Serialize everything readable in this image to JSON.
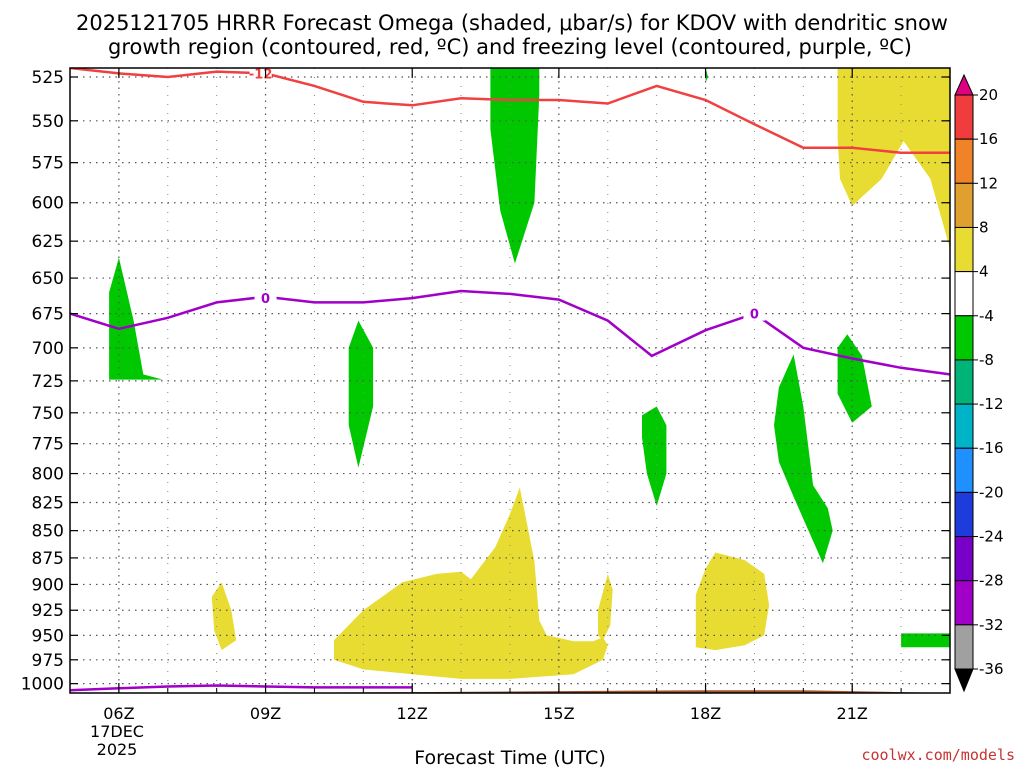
{
  "title_line1": "2025121705 HRRR Forecast Omega (shaded, μbar/s) for KDOV with dendritic snow",
  "title_line2": "growth region (contoured, red, ºC) and freezing level (contoured, purple, ºC)",
  "credit": "coolwx.com/models",
  "chart_data": {
    "type": "heatmap",
    "xlabel": "Forecast Time (UTC)",
    "ylabel": "",
    "x_range_hours": [
      5,
      23
    ],
    "y_range_hPa": [
      520,
      1010
    ],
    "x_ticks": [
      {
        "hour": 6,
        "label": "06Z"
      },
      {
        "hour": 9,
        "label": "09Z"
      },
      {
        "hour": 12,
        "label": "12Z"
      },
      {
        "hour": 15,
        "label": "15Z"
      },
      {
        "hour": 18,
        "label": "18Z"
      },
      {
        "hour": 21,
        "label": "21Z"
      }
    ],
    "date_label_line1": "17DEC",
    "date_label_line2": "2025",
    "y_ticks": [
      525,
      550,
      575,
      600,
      625,
      650,
      675,
      700,
      725,
      750,
      775,
      800,
      825,
      850,
      875,
      900,
      925,
      950,
      975,
      1000
    ],
    "grid": true,
    "colorbar": {
      "levels": [
        "20",
        "16",
        "12",
        "8",
        "4",
        "-4",
        "-8",
        "-12",
        "-16",
        "-20",
        "-24",
        "-28",
        "-32",
        "-36"
      ],
      "colors": [
        "#e00080",
        "#f03c3c",
        "#f08228",
        "#e0a030",
        "#e8dc32",
        "#ffffff",
        "#00c800",
        "#00b478",
        "#00b4c8",
        "#1e90ff",
        "#1e3cdc",
        "#7800c8",
        "#a000c8",
        "#a0a0a0",
        "#000000"
      ]
    },
    "shaded_regions": [
      {
        "value": "4 to 8",
        "color": "#e8dc32",
        "points": [
          [
            21.0,
            520
          ],
          [
            22.5,
            520
          ],
          [
            22.5,
            520
          ],
          [
            23.0,
            520
          ],
          [
            23.0,
            630
          ],
          [
            22.6,
            585
          ],
          [
            22.05,
            562
          ],
          [
            21.6,
            585
          ],
          [
            21.0,
            602
          ],
          [
            20.75,
            585
          ],
          [
            20.7,
            560
          ],
          [
            20.7,
            520
          ]
        ]
      },
      {
        "value": "4 to 8",
        "color": "#e8dc32",
        "points": [
          [
            10.4,
            955
          ],
          [
            11.0,
            925
          ],
          [
            11.8,
            898
          ],
          [
            12.5,
            890
          ],
          [
            13.0,
            888
          ],
          [
            13.2,
            895
          ],
          [
            13.7,
            865
          ],
          [
            14.0,
            835
          ],
          [
            14.2,
            812
          ],
          [
            14.5,
            878
          ],
          [
            14.6,
            935
          ],
          [
            14.75,
            950
          ],
          [
            15.3,
            956
          ],
          [
            15.7,
            956
          ],
          [
            15.9,
            952
          ],
          [
            16.0,
            960
          ],
          [
            15.9,
            975
          ],
          [
            15.3,
            990
          ],
          [
            14.0,
            995
          ],
          [
            13.0,
            995
          ],
          [
            12.0,
            990
          ],
          [
            11.0,
            985
          ],
          [
            10.4,
            975
          ]
        ]
      },
      {
        "value": "4 to 8",
        "color": "#e8dc32",
        "points": [
          [
            8.1,
            898
          ],
          [
            8.3,
            925
          ],
          [
            8.4,
            955
          ],
          [
            8.1,
            965
          ],
          [
            7.95,
            945
          ],
          [
            7.9,
            912
          ]
        ]
      },
      {
        "value": "4 to 8",
        "color": "#e8dc32",
        "points": [
          [
            17.8,
            962
          ],
          [
            17.8,
            910
          ],
          [
            18.0,
            885
          ],
          [
            18.2,
            870
          ],
          [
            18.8,
            877
          ],
          [
            19.2,
            890
          ],
          [
            19.3,
            920
          ],
          [
            19.2,
            950
          ],
          [
            18.8,
            960
          ],
          [
            18.2,
            965
          ]
        ]
      },
      {
        "value": "4 to 8",
        "color": "#e8dc32",
        "points": [
          [
            15.8,
            950
          ],
          [
            15.8,
            925
          ],
          [
            16.0,
            890
          ],
          [
            16.1,
            905
          ],
          [
            16.05,
            940
          ],
          [
            15.9,
            955
          ]
        ]
      },
      {
        "value": "-4 to -8",
        "color": "#00c800",
        "points": [
          [
            5.8,
            660
          ],
          [
            6.0,
            636
          ],
          [
            6.3,
            680
          ],
          [
            6.5,
            720
          ],
          [
            6.9,
            724
          ],
          [
            6.5,
            724
          ],
          [
            5.8,
            724
          ]
        ]
      },
      {
        "value": "-4 to -8",
        "color": "#00c800",
        "points": [
          [
            10.7,
            700
          ],
          [
            10.9,
            680
          ],
          [
            11.2,
            700
          ],
          [
            11.2,
            745
          ],
          [
            10.9,
            795
          ],
          [
            10.7,
            760
          ],
          [
            10.7,
            730
          ]
        ]
      },
      {
        "value": "-4 to -8",
        "color": "#00c800",
        "points": [
          [
            13.6,
            520
          ],
          [
            14.6,
            520
          ],
          [
            14.6,
            535
          ],
          [
            14.5,
            600
          ],
          [
            14.1,
            640
          ],
          [
            13.8,
            605
          ],
          [
            13.6,
            555
          ]
        ]
      },
      {
        "value": "-4 to -8",
        "color": "#00c800",
        "points": [
          [
            16.7,
            752
          ],
          [
            17.0,
            745
          ],
          [
            17.2,
            760
          ],
          [
            17.2,
            800
          ],
          [
            17.0,
            828
          ],
          [
            16.8,
            800
          ],
          [
            16.7,
            770
          ]
        ]
      },
      {
        "value": "-4 to -8",
        "color": "#00c800",
        "points": [
          [
            19.5,
            730
          ],
          [
            19.8,
            705
          ],
          [
            20.0,
            745
          ],
          [
            20.2,
            810
          ],
          [
            20.5,
            830
          ],
          [
            20.6,
            850
          ],
          [
            20.4,
            880
          ],
          [
            19.8,
            820
          ],
          [
            19.5,
            790
          ],
          [
            19.4,
            760
          ]
        ]
      },
      {
        "value": "-4 to -8",
        "color": "#00c800",
        "points": [
          [
            20.7,
            700
          ],
          [
            20.9,
            690
          ],
          [
            21.2,
            706
          ],
          [
            21.4,
            745
          ],
          [
            21.0,
            758
          ],
          [
            20.7,
            735
          ]
        ]
      },
      {
        "value": "-4 to -8",
        "color": "#00c800",
        "points": [
          [
            22.0,
            948
          ],
          [
            23.0,
            948
          ],
          [
            23.0,
            962
          ],
          [
            22.0,
            962
          ]
        ]
      },
      {
        "value": "-4 to -8",
        "color": "#00c800",
        "points": [
          [
            18.0,
            520
          ],
          [
            18.05,
            525
          ],
          [
            18.0,
            528
          ]
        ]
      }
    ],
    "contours": [
      {
        "name": "dendritic growth region",
        "label": "-12",
        "label_at": [
          8.9,
          523
        ],
        "color": "#f04040",
        "points": [
          [
            5,
            520
          ],
          [
            6,
            523
          ],
          [
            7,
            525
          ],
          [
            8,
            522
          ],
          [
            9,
            523
          ],
          [
            10,
            530
          ],
          [
            11,
            539
          ],
          [
            12,
            541
          ],
          [
            13,
            537
          ],
          [
            14,
            538
          ],
          [
            15,
            538
          ],
          [
            16,
            540
          ],
          [
            17,
            530
          ],
          [
            18,
            538
          ],
          [
            19,
            552
          ],
          [
            20,
            566
          ],
          [
            21,
            566
          ],
          [
            22,
            569
          ],
          [
            23,
            569
          ]
        ]
      },
      {
        "name": "freezing level",
        "label": "0",
        "label_at": [
          9.0,
          664
        ],
        "color": "#a000c8",
        "points": [
          [
            5,
            675
          ],
          [
            6,
            686
          ],
          [
            7,
            678
          ],
          [
            8,
            667
          ],
          [
            9,
            663
          ],
          [
            10,
            667
          ],
          [
            11,
            667
          ],
          [
            12,
            664
          ],
          [
            13,
            659
          ],
          [
            14,
            661
          ],
          [
            15,
            665
          ],
          [
            16,
            680
          ],
          [
            16.9,
            706
          ],
          [
            18,
            687
          ],
          [
            19,
            675
          ],
          [
            20,
            700
          ],
          [
            21,
            708
          ],
          [
            22,
            715
          ],
          [
            23,
            720
          ]
        ]
      },
      {
        "name": "freezing level",
        "label": "",
        "label_at": [
          19.0,
          675
        ],
        "color": "#a000c8",
        "points": [
          [
            5,
            1007
          ],
          [
            6,
            1005
          ],
          [
            7,
            1003
          ],
          [
            8,
            1002
          ],
          [
            9,
            1003
          ],
          [
            10,
            1004
          ],
          [
            11,
            1004
          ],
          [
            12,
            1004
          ]
        ]
      }
    ],
    "contour_labels": [
      {
        "text": "-12",
        "color": "#f04040"
      },
      {
        "text": "0",
        "color": "#a000c8"
      },
      {
        "text": "0",
        "color": "#a000c8"
      }
    ],
    "terrain_color": "#a0522d"
  }
}
